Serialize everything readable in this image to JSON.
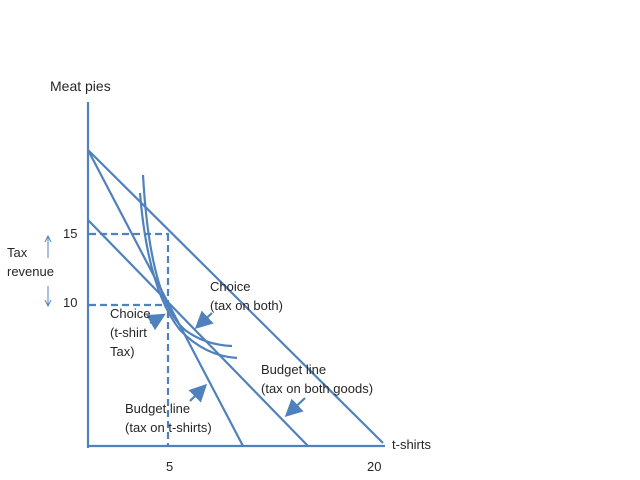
{
  "colors": {
    "line": "#4f81bd",
    "text": "#262626"
  },
  "axes": {
    "y_label": "Meat pies",
    "x_label": "t-shirts",
    "y_ticks": [
      "15",
      "10"
    ],
    "x_ticks": [
      "5",
      "20"
    ]
  },
  "annotations": {
    "tax_revenue": [
      "Tax",
      "revenue"
    ],
    "choice_tshirt": [
      "Choice",
      "(t-shirt",
      "Tax)"
    ],
    "choice_both": [
      "Choice",
      "(tax on both)"
    ],
    "budget_both": [
      "Budget line",
      "(tax on both goods)"
    ],
    "budget_tshirt": [
      "Budget line",
      "(tax on t-shirts)"
    ]
  }
}
